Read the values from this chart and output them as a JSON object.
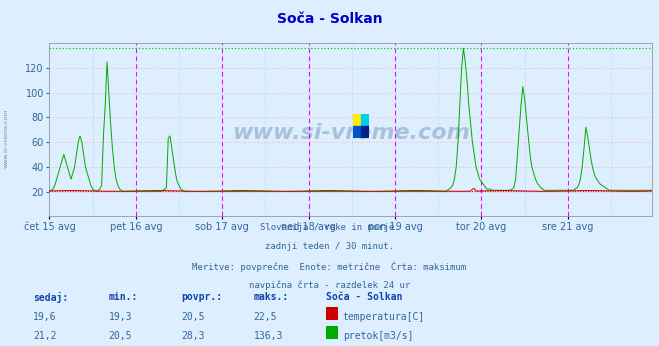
{
  "title": "Soča - Solkan",
  "fig_bg_color": "#ddeeff",
  "plot_bg_color": "#ddeeff",
  "grid_color_h": "#ffaaaa",
  "grid_color_v": "#aaccff",
  "ylabel_color": "#336699",
  "xlabel_color": "#336699",
  "title_color": "#0000cc",
  "temp_color": "#cc0000",
  "flow_color": "#00aa00",
  "dashed_line_color": "#ff00ff",
  "max_line_color": "#00cc00",
  "mean_line_color": "#cc0000",
  "watermark_color": "#1a3a6a",
  "y_min": 0,
  "y_max": 140,
  "y_ticks": [
    20,
    40,
    60,
    80,
    100,
    120
  ],
  "subtitle_lines": [
    "Slovenija / reke in morje.",
    "zadnji teden / 30 minut.",
    "Meritve: povprečne  Enote: metrične  Črta: maksimum",
    "navpična črta - razdelek 24 ur"
  ],
  "table_header": [
    "sedaj:",
    "min.:",
    "povpr.:",
    "maks.:",
    "Soča - Solkan"
  ],
  "table_row1": [
    "19,6",
    "19,3",
    "20,5",
    "22,5",
    "temperatura[C]"
  ],
  "table_row2": [
    "21,2",
    "20,5",
    "28,3",
    "136,3",
    "pretok[m3/s]"
  ],
  "temp_max": 22.5,
  "flow_max": 136.3,
  "flow_mean": 28.3,
  "temp_mean": 20.5,
  "x_tick_labels": [
    "čet 15 avg",
    "pet 16 avg",
    "sob 17 avg",
    "ned 18 avg",
    "pon 19 avg",
    "tor 20 avg",
    "sre 21 avg"
  ],
  "n_points": 336,
  "flow_data": [
    20,
    21,
    22,
    25,
    30,
    35,
    40,
    45,
    50,
    45,
    40,
    35,
    30,
    35,
    40,
    50,
    60,
    65,
    60,
    50,
    40,
    35,
    30,
    25,
    22,
    21,
    20,
    21,
    22,
    25,
    65,
    90,
    125,
    100,
    75,
    55,
    40,
    30,
    25,
    22,
    21,
    20,
    20,
    20,
    20,
    20,
    20,
    20,
    20,
    20,
    20,
    20,
    20,
    20,
    20,
    20,
    20,
    20,
    20,
    20,
    20,
    20,
    20,
    21,
    22,
    23,
    63,
    65,
    55,
    45,
    35,
    28,
    25,
    22,
    21,
    20,
    20,
    20,
    20,
    20,
    20,
    20,
    20,
    20,
    20,
    20,
    20,
    20,
    20,
    20,
    20,
    20,
    20,
    20,
    20,
    20,
    20,
    20,
    20,
    20,
    20,
    20,
    20,
    20,
    20,
    20,
    20,
    20,
    20,
    20,
    20,
    20,
    20,
    20,
    20,
    20,
    20,
    20,
    20,
    20,
    20,
    20,
    20,
    20,
    20,
    20,
    20,
    20,
    20,
    20,
    20,
    20,
    20,
    20,
    20,
    20,
    20,
    20,
    20,
    20,
    20,
    20,
    20,
    20,
    20,
    20,
    20,
    20,
    20,
    20,
    20,
    20,
    20,
    20,
    20,
    20,
    20,
    20,
    20,
    20,
    20,
    20,
    20,
    20,
    20,
    20,
    20,
    20,
    20,
    20,
    20,
    20,
    20,
    20,
    20,
    20,
    20,
    20,
    20,
    20,
    20,
    20,
    20,
    20,
    20,
    20,
    20,
    20,
    20,
    20,
    20,
    20,
    20,
    20,
    20,
    20,
    20,
    20,
    20,
    20,
    20,
    20,
    20,
    20,
    20,
    20,
    20,
    20,
    20,
    20,
    20,
    20,
    20,
    20,
    20,
    20,
    20,
    20,
    20,
    20,
    20,
    21,
    22,
    23,
    25,
    30,
    40,
    60,
    90,
    120,
    136,
    125,
    110,
    90,
    75,
    60,
    50,
    40,
    35,
    30,
    28,
    26,
    24,
    22,
    22,
    22,
    21,
    21,
    21,
    21,
    21,
    21,
    21,
    21,
    21,
    21,
    21,
    22,
    23,
    30,
    50,
    70,
    90,
    105,
    95,
    80,
    65,
    50,
    40,
    35,
    30,
    27,
    25,
    23,
    22,
    21,
    21,
    21,
    21,
    21,
    21,
    21,
    21,
    21,
    21,
    21,
    21,
    21,
    21,
    21,
    21,
    21,
    22,
    23,
    25,
    30,
    40,
    55,
    72,
    65,
    55,
    45,
    38,
    33,
    30,
    28,
    26,
    25,
    24,
    23,
    22,
    21,
    21,
    21,
    21,
    21,
    21,
    21,
    21,
    21,
    21,
    21,
    21,
    21,
    21,
    21,
    21,
    21,
    21,
    21,
    21,
    21,
    21,
    21,
    21,
    21
  ],
  "temp_data_base": 20.5,
  "logo_colors": [
    "#ffee00",
    "#00ccee",
    "#0055cc",
    "#003399"
  ]
}
